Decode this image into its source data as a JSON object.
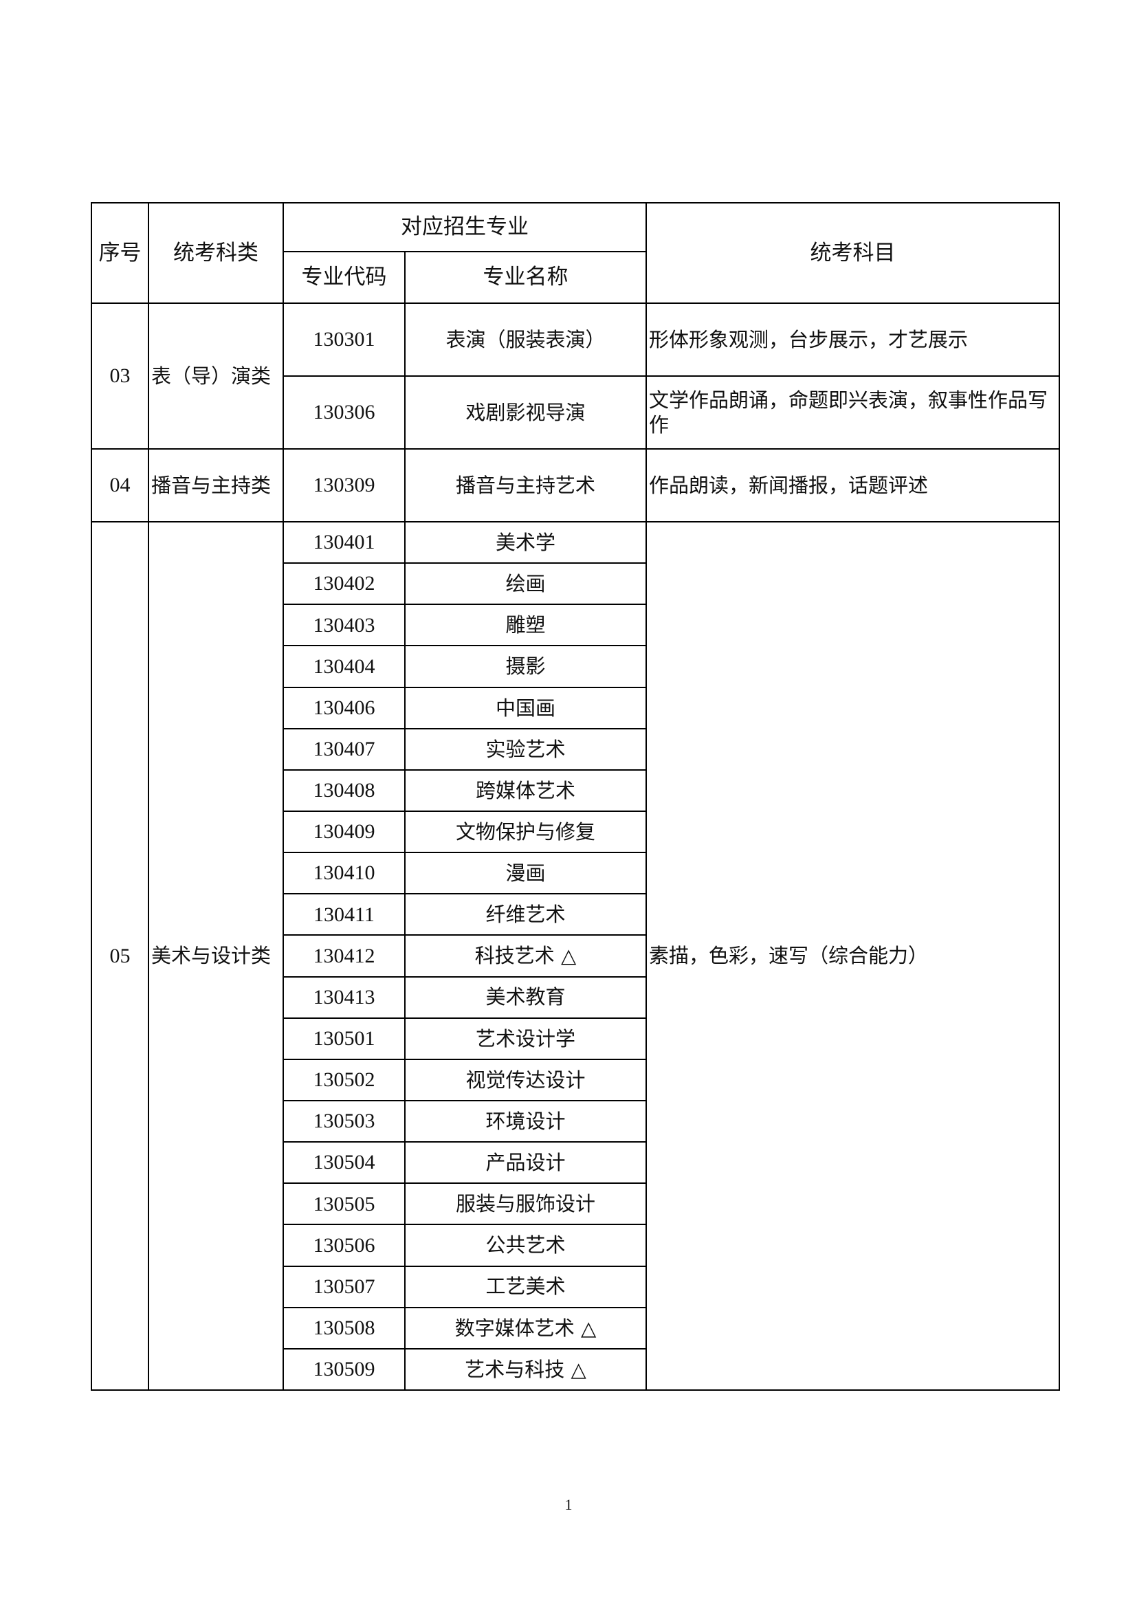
{
  "header": {
    "seq": "序号",
    "category": "统考科类",
    "majors_group": "对应招生专业",
    "code": "专业代码",
    "name": "专业名称",
    "subjects": "统考科目"
  },
  "groups": [
    {
      "seq": "03",
      "category": "表（导）演类",
      "subjects_per_row": true,
      "majors": [
        {
          "code": "130301",
          "name": "表演（服装表演）",
          "subjects": "形体形象观测，台步展示，才艺展示"
        },
        {
          "code": "130306",
          "name": "戏剧影视导演",
          "subjects": "文学作品朗诵，命题即兴表演，叙事性作品写作"
        }
      ]
    },
    {
      "seq": "04",
      "category": "播音与主持类",
      "subjects_per_row": true,
      "majors": [
        {
          "code": "130309",
          "name": "播音与主持艺术",
          "subjects": "作品朗读，新闻播报，话题评述"
        }
      ]
    },
    {
      "seq": "05",
      "category": "美术与设计类",
      "subjects_per_row": false,
      "subjects": "素描，色彩，速写（综合能力）",
      "majors": [
        {
          "code": "130401",
          "name": "美术学"
        },
        {
          "code": "130402",
          "name": "绘画"
        },
        {
          "code": "130403",
          "name": "雕塑"
        },
        {
          "code": "130404",
          "name": "摄影"
        },
        {
          "code": "130406",
          "name": "中国画"
        },
        {
          "code": "130407",
          "name": "实验艺术"
        },
        {
          "code": "130408",
          "name": "跨媒体艺术"
        },
        {
          "code": "130409",
          "name": "文物保护与修复"
        },
        {
          "code": "130410",
          "name": "漫画"
        },
        {
          "code": "130411",
          "name": "纤维艺术"
        },
        {
          "code": "130412",
          "name": "科技艺术 △"
        },
        {
          "code": "130413",
          "name": "美术教育"
        },
        {
          "code": "130501",
          "name": "艺术设计学"
        },
        {
          "code": "130502",
          "name": "视觉传达设计"
        },
        {
          "code": "130503",
          "name": "环境设计"
        },
        {
          "code": "130504",
          "name": "产品设计"
        },
        {
          "code": "130505",
          "name": "服装与服饰设计"
        },
        {
          "code": "130506",
          "name": "公共艺术"
        },
        {
          "code": "130507",
          "name": "工艺美术"
        },
        {
          "code": "130508",
          "name": "数字媒体艺术 △"
        },
        {
          "code": "130509",
          "name": "艺术与科技 △"
        }
      ]
    }
  ],
  "page_number": "1"
}
